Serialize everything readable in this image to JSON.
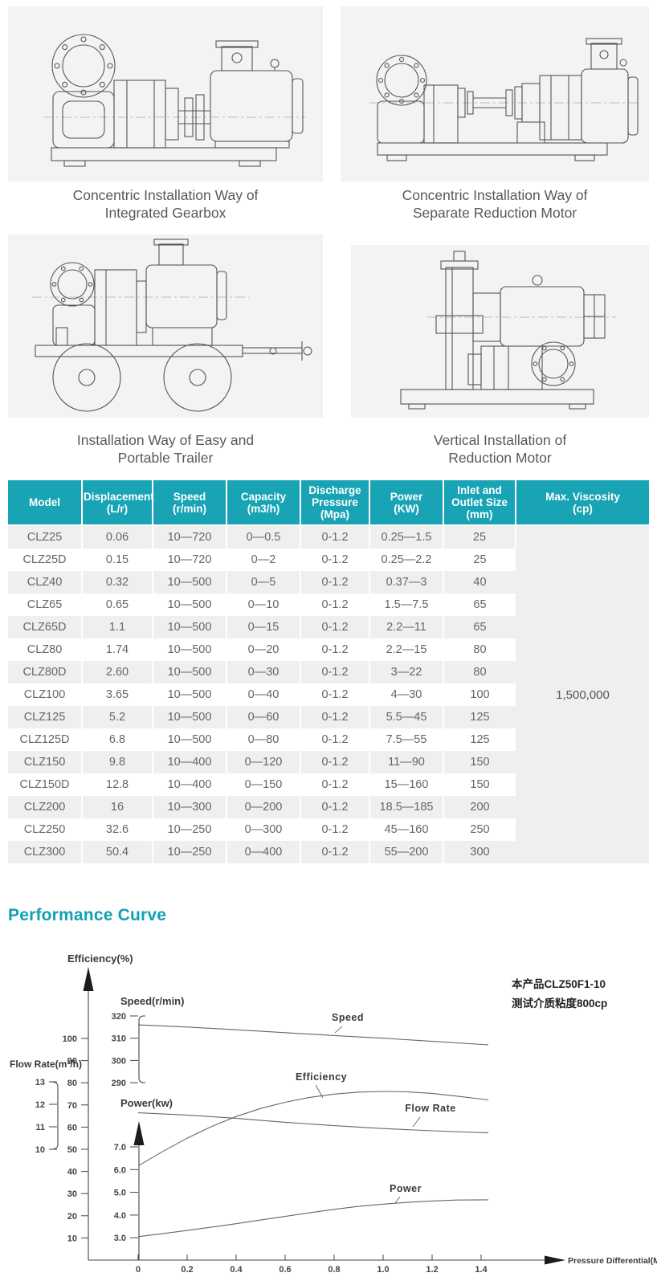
{
  "drawings": [
    {
      "caption": "Concentric Installation Way of\nIntegrated Gearbox"
    },
    {
      "caption": "Concentric Installation Way of\nSeparate Reduction Motor"
    },
    {
      "caption": "Installation Way of Easy and\nPortable Trailer"
    },
    {
      "caption": "Vertical Installation of\nReduction Motor"
    }
  ],
  "spec_table": {
    "headers": [
      "Model",
      "Displacement\n(L/r)",
      "Speed\n(r/min)",
      "Capacity\n(m3/h)",
      "Discharge\nPressure\n(Mpa)",
      "Power\n(KW)",
      "Inlet and\nOutlet Size\n(mm)",
      "Max. Viscosity\n(cp)"
    ],
    "rows": [
      [
        "CLZ25",
        "0.06",
        "10—720",
        "0—0.5",
        "0-1.2",
        "0.25—1.5",
        "25"
      ],
      [
        "CLZ25D",
        "0.15",
        "10—720",
        "0—2",
        "0-1.2",
        "0.25—2.2",
        "25"
      ],
      [
        "CLZ40",
        "0.32",
        "10—500",
        "0—5",
        "0-1.2",
        "0.37—3",
        "40"
      ],
      [
        "CLZ65",
        "0.65",
        "10—500",
        "0—10",
        "0-1.2",
        "1.5—7.5",
        "65"
      ],
      [
        "CLZ65D",
        "1.1",
        "10—500",
        "0—15",
        "0-1.2",
        "2.2—11",
        "65"
      ],
      [
        "CLZ80",
        "1.74",
        "10—500",
        "0—20",
        "0-1.2",
        "2.2—15",
        "80"
      ],
      [
        "CLZ80D",
        "2.60",
        "10—500",
        "0—30",
        "0-1.2",
        "3—22",
        "80"
      ],
      [
        "CLZ100",
        "3.65",
        "10—500",
        "0—40",
        "0-1.2",
        "4—30",
        "100"
      ],
      [
        "CLZ125",
        "5.2",
        "10—500",
        "0—60",
        "0-1.2",
        "5.5—45",
        "125"
      ],
      [
        "CLZ125D",
        "6.8",
        "10—500",
        "0—80",
        "0-1.2",
        "7.5—55",
        "125"
      ],
      [
        "CLZ150",
        "9.8",
        "10—400",
        "0—120",
        "0-1.2",
        "11—90",
        "150"
      ],
      [
        "CLZ150D",
        "12.8",
        "10—400",
        "0—150",
        "0-1.2",
        "15—160",
        "150"
      ],
      [
        "CLZ200",
        "16",
        "10—300",
        "0—200",
        "0-1.2",
        "18.5—185",
        "200"
      ],
      [
        "CLZ250",
        "32.6",
        "10—250",
        "0—300",
        "0-1.2",
        "45—160",
        "250"
      ],
      [
        "CLZ300",
        "50.4",
        "10—250",
        "0—400",
        "0-1.2",
        "55—200",
        "300"
      ]
    ],
    "max_viscosity": "1,500,000"
  },
  "section_title": "Performance Curve",
  "chart_data": {
    "type": "line",
    "title": "Performance Curve",
    "xlabel": "Pressure Differential(Mpa)",
    "x_ticks": [
      "0",
      "0.2",
      "0.4",
      "0.6",
      "0.8",
      "1.0",
      "1.2",
      "1.4"
    ],
    "x_range": [
      0,
      1.45
    ],
    "grid": false,
    "axes": [
      {
        "label": "Efficiency(%)",
        "ticks": [
          "100",
          "90",
          "80",
          "70",
          "60",
          "50",
          "40",
          "30",
          "20",
          "10"
        ]
      },
      {
        "label": "Speed(r/min)",
        "ticks": [
          "320",
          "310",
          "300",
          "290"
        ]
      },
      {
        "label": "Flow Rate(m³/h)",
        "ticks": [
          "13",
          "12",
          "11",
          "10"
        ]
      },
      {
        "label": "Power(kw)",
        "ticks": [
          "7.0",
          "6.0",
          "5.0",
          "4.0",
          "3.0"
        ]
      }
    ],
    "series": [
      {
        "name": "Speed",
        "unit": "r/min",
        "points": [
          [
            0,
            316
          ],
          [
            0.2,
            315
          ],
          [
            0.4,
            313.8
          ],
          [
            0.6,
            312.5
          ],
          [
            0.8,
            311.2
          ],
          [
            1.0,
            310
          ],
          [
            1.2,
            308.6
          ],
          [
            1.43,
            307
          ]
        ]
      },
      {
        "name": "Efficiency",
        "unit": "%",
        "points": [
          [
            0,
            42.5
          ],
          [
            0.1,
            49
          ],
          [
            0.2,
            55
          ],
          [
            0.3,
            60.3
          ],
          [
            0.4,
            64.8
          ],
          [
            0.5,
            68.4
          ],
          [
            0.6,
            71.2
          ],
          [
            0.7,
            73.4
          ],
          [
            0.8,
            74.9
          ],
          [
            0.9,
            75.8
          ],
          [
            1.0,
            76.1
          ],
          [
            1.1,
            75.9
          ],
          [
            1.2,
            75.2
          ],
          [
            1.3,
            74
          ],
          [
            1.43,
            72.3
          ]
        ]
      },
      {
        "name": "Flow Rate",
        "unit": "m³/h",
        "points": [
          [
            0,
            11.62
          ],
          [
            0.2,
            11.52
          ],
          [
            0.4,
            11.38
          ],
          [
            0.6,
            11.2
          ],
          [
            0.8,
            11.05
          ],
          [
            1.0,
            10.92
          ],
          [
            1.2,
            10.82
          ],
          [
            1.43,
            10.73
          ]
        ]
      },
      {
        "name": "Power",
        "unit": "kw",
        "points": [
          [
            0,
            3.05
          ],
          [
            0.1,
            3.18
          ],
          [
            0.2,
            3.32
          ],
          [
            0.3,
            3.47
          ],
          [
            0.4,
            3.62
          ],
          [
            0.5,
            3.78
          ],
          [
            0.6,
            3.94
          ],
          [
            0.7,
            4.1
          ],
          [
            0.8,
            4.25
          ],
          [
            0.9,
            4.38
          ],
          [
            1.0,
            4.48
          ],
          [
            1.1,
            4.56
          ],
          [
            1.2,
            4.62
          ],
          [
            1.3,
            4.66
          ],
          [
            1.43,
            4.67
          ]
        ]
      }
    ],
    "annotation": [
      "本产品CLZ50F1-10",
      "测试介质粘度800cp"
    ]
  },
  "theme": {
    "teal": "#18a4b4",
    "title_teal": "#12a0b5",
    "panel_bg": "#f3f3f2",
    "row_alt": "#efefef"
  }
}
